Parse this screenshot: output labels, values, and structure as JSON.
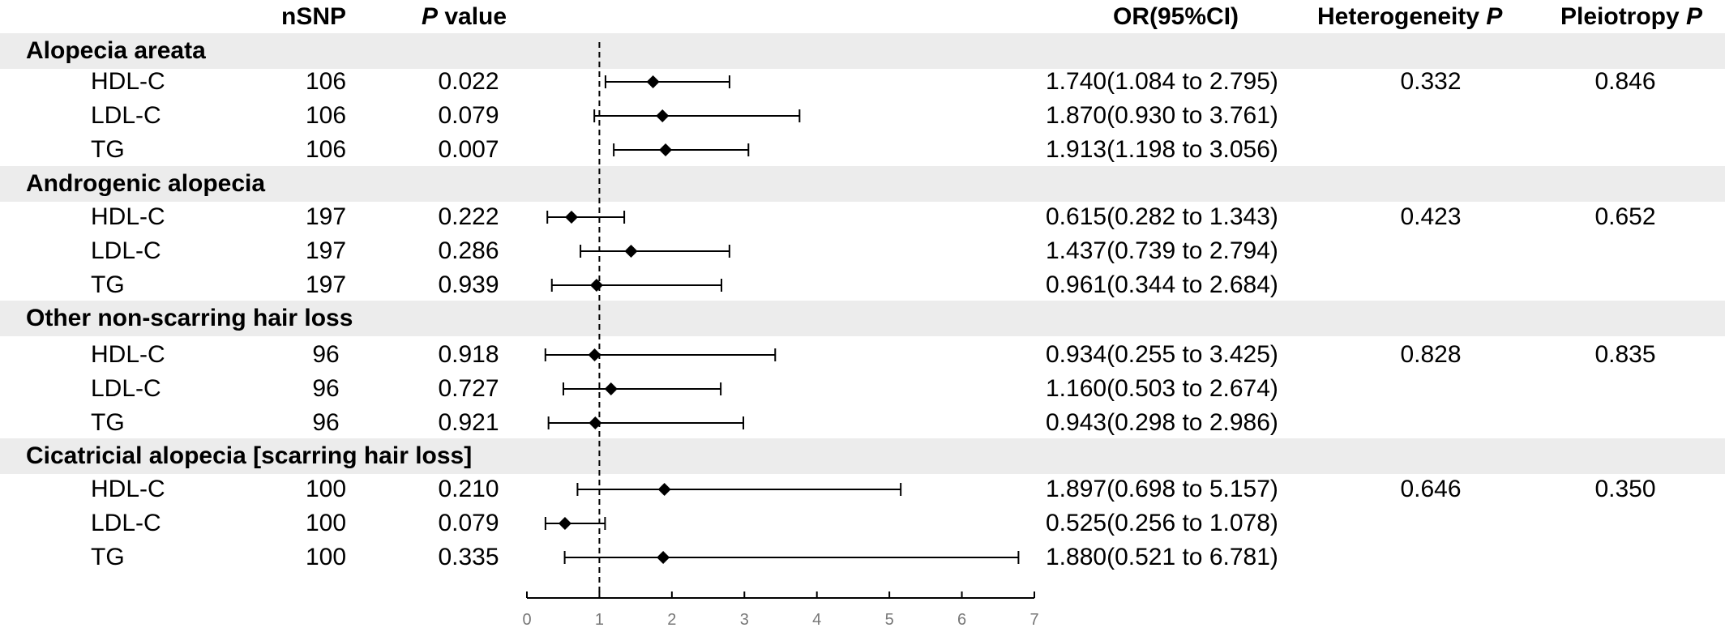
{
  "headers": {
    "nsnp": "nSNP",
    "p_italic": "P",
    "p_rest": " value",
    "or": "OR(95%CI)",
    "het_text": "Heterogeneity ",
    "het_italic": "P",
    "plei_text": "Pleiotropy ",
    "plei_italic": "P"
  },
  "groups": [
    {
      "title": "Alopecia areata",
      "heterogeneity_p": "0.332",
      "pleiotropy_p": "0.846",
      "rows": [
        {
          "trait": "HDL-C",
          "nsnp": "106",
          "p": "0.022",
          "or_text": "1.740(1.084 to 2.795)"
        },
        {
          "trait": "LDL-C",
          "nsnp": "106",
          "p": "0.079",
          "or_text": "1.870(0.930 to 3.761)"
        },
        {
          "trait": "TG",
          "nsnp": "106",
          "p": "0.007",
          "or_text": "1.913(1.198 to 3.056)"
        }
      ]
    },
    {
      "title": "Androgenic alopecia",
      "heterogeneity_p": "0.423",
      "pleiotropy_p": "0.652",
      "rows": [
        {
          "trait": "HDL-C",
          "nsnp": "197",
          "p": "0.222",
          "or_text": "0.615(0.282 to 1.343)"
        },
        {
          "trait": "LDL-C",
          "nsnp": "197",
          "p": "0.286",
          "or_text": "1.437(0.739 to 2.794)"
        },
        {
          "trait": "TG",
          "nsnp": "197",
          "p": "0.939",
          "or_text": "0.961(0.344 to 2.684)"
        }
      ]
    },
    {
      "title": "Other non-scarring hair loss",
      "heterogeneity_p": "0.828",
      "pleiotropy_p": "0.835",
      "rows": [
        {
          "trait": "HDL-C",
          "nsnp": "96",
          "p": "0.918",
          "or_text": "0.934(0.255 to 3.425)"
        },
        {
          "trait": "LDL-C",
          "nsnp": "96",
          "p": "0.727",
          "or_text": "1.160(0.503 to 2.674)"
        },
        {
          "trait": "TG",
          "nsnp": "96",
          "p": "0.921",
          "or_text": "0.943(0.298 to 2.986)"
        }
      ]
    },
    {
      "title": "Cicatricial alopecia [scarring hair loss]",
      "heterogeneity_p": "0.646",
      "pleiotropy_p": "0.350",
      "rows": [
        {
          "trait": "HDL-C",
          "nsnp": "100",
          "p": "0.210",
          "or_text": "1.897(0.698 to 5.157)"
        },
        {
          "trait": "LDL-C",
          "nsnp": "100",
          "p": "0.079",
          "or_text": "0.525(0.256 to 1.078)"
        },
        {
          "trait": "TG",
          "nsnp": "100",
          "p": "0.335",
          "or_text": "1.880(0.521 to 6.781)"
        }
      ]
    }
  ],
  "chart_data": {
    "type": "forest",
    "xlim": [
      0,
      7
    ],
    "xticks": [
      "0",
      "1",
      "2",
      "3",
      "4",
      "5",
      "6",
      "7"
    ],
    "reference_line": 1,
    "series": [
      {
        "group": "Alopecia areata",
        "trait": "HDL-C",
        "or": 1.74,
        "lo": 1.084,
        "hi": 2.795
      },
      {
        "group": "Alopecia areata",
        "trait": "LDL-C",
        "or": 1.87,
        "lo": 0.93,
        "hi": 3.761
      },
      {
        "group": "Alopecia areata",
        "trait": "TG",
        "or": 1.913,
        "lo": 1.198,
        "hi": 3.056
      },
      {
        "group": "Androgenic alopecia",
        "trait": "HDL-C",
        "or": 0.615,
        "lo": 0.282,
        "hi": 1.343
      },
      {
        "group": "Androgenic alopecia",
        "trait": "LDL-C",
        "or": 1.437,
        "lo": 0.739,
        "hi": 2.794
      },
      {
        "group": "Androgenic alopecia",
        "trait": "TG",
        "or": 0.961,
        "lo": 0.344,
        "hi": 2.684
      },
      {
        "group": "Other non-scarring hair loss",
        "trait": "HDL-C",
        "or": 0.934,
        "lo": 0.255,
        "hi": 3.425
      },
      {
        "group": "Other non-scarring hair loss",
        "trait": "LDL-C",
        "or": 1.16,
        "lo": 0.503,
        "hi": 2.674
      },
      {
        "group": "Other non-scarring hair loss",
        "trait": "TG",
        "or": 0.943,
        "lo": 0.298,
        "hi": 2.986
      },
      {
        "group": "Cicatricial alopecia [scarring hair loss]",
        "trait": "HDL-C",
        "or": 1.897,
        "lo": 0.698,
        "hi": 5.157
      },
      {
        "group": "Cicatricial alopecia [scarring hair loss]",
        "trait": "LDL-C",
        "or": 0.525,
        "lo": 0.256,
        "hi": 1.078
      },
      {
        "group": "Cicatricial alopecia [scarring hair loss]",
        "trait": "TG",
        "or": 1.88,
        "lo": 0.521,
        "hi": 6.781
      }
    ]
  }
}
